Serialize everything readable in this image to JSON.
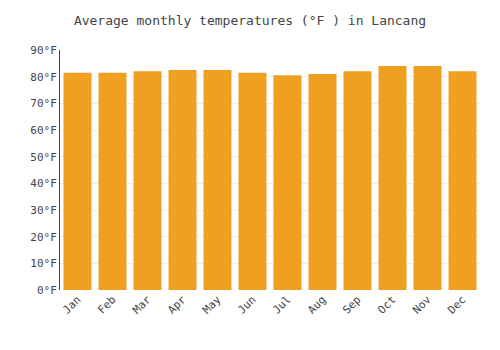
{
  "chart_data": {
    "type": "bar",
    "title": "Average monthly temperatures (°F ) in Lancang",
    "categories": [
      "Jan",
      "Feb",
      "Mar",
      "Apr",
      "May",
      "Jun",
      "Jul",
      "Aug",
      "Sep",
      "Oct",
      "Nov",
      "Dec"
    ],
    "values": [
      81.5,
      81.5,
      82.0,
      82.5,
      82.5,
      81.5,
      80.5,
      81.0,
      82.0,
      84.0,
      84.0,
      82.0
    ],
    "color": "#F0A020",
    "ylim": [
      0,
      90
    ],
    "yticks": [
      {
        "value": 0,
        "label": "0°F"
      },
      {
        "value": 10,
        "label": "10°F"
      },
      {
        "value": 20,
        "label": "20°F"
      },
      {
        "value": 30,
        "label": "30°F"
      },
      {
        "value": 40,
        "label": "40°F"
      },
      {
        "value": 50,
        "label": "50°F"
      },
      {
        "value": 60,
        "label": "60°F"
      },
      {
        "value": 70,
        "label": "70°F"
      },
      {
        "value": 80,
        "label": "80°F"
      },
      {
        "value": 90,
        "label": "90°F"
      }
    ],
    "grid": true
  }
}
